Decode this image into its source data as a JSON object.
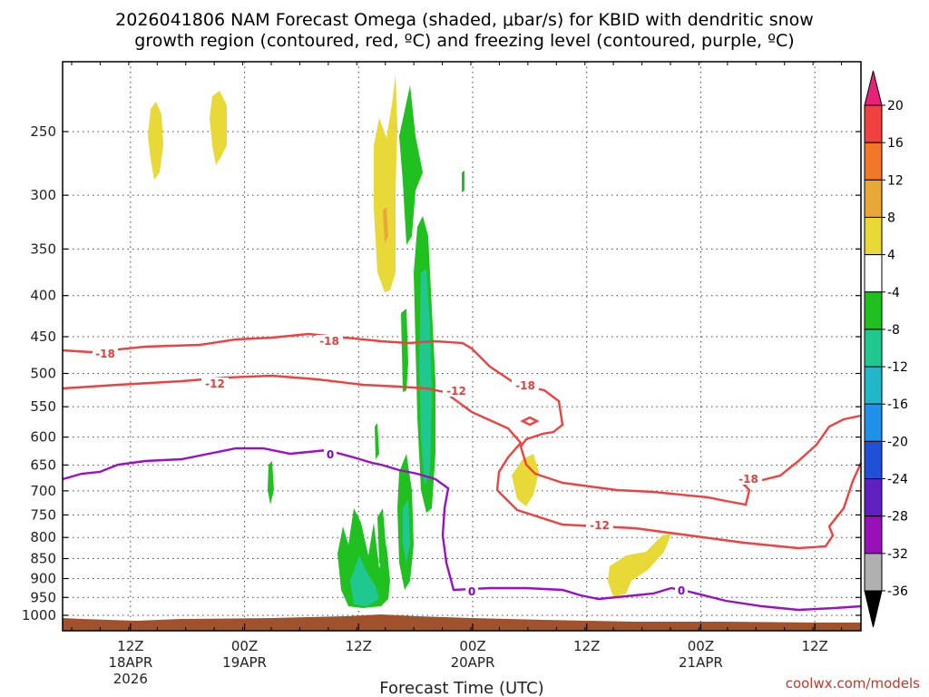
{
  "chart_data": {
    "type": "heatmap",
    "title_line1": "2026041806 NAM Forecast Omega (shaded, μbar/s) for KBID with dendritic snow",
    "title_line2": "growth region (contoured, red, ºC) and freezing level (contoured, purple, ºC)",
    "xlabel": "Forecast Time (UTC)",
    "credit": "coolwx.com/models",
    "y_ticks": [
      "250",
      "300",
      "350",
      "400",
      "450",
      "500",
      "550",
      "600",
      "650",
      "700",
      "750",
      "800",
      "850",
      "900",
      "950",
      "1000"
    ],
    "y_tick_values": [
      250,
      300,
      350,
      400,
      450,
      500,
      550,
      600,
      650,
      700,
      750,
      800,
      850,
      900,
      950,
      1000
    ],
    "x_ticks": [
      {
        "hour": 6,
        "l1": "12Z",
        "l2": "18APR",
        "l3": "2026"
      },
      {
        "hour": 18,
        "l1": "00Z",
        "l2": "19APR",
        "l3": ""
      },
      {
        "hour": 30,
        "l1": "12Z",
        "l2": "",
        "l3": ""
      },
      {
        "hour": 42,
        "l1": "00Z",
        "l2": "20APR",
        "l3": ""
      },
      {
        "hour": 54,
        "l1": "12Z",
        "l2": "",
        "l3": ""
      },
      {
        "hour": 66,
        "l1": "00Z",
        "l2": "21APR",
        "l3": ""
      },
      {
        "hour": 78,
        "l1": "12Z",
        "l2": "",
        "l3": ""
      }
    ],
    "x_range_hours": [
      0,
      84
    ],
    "y_range_hpa": [
      200,
      1025
    ],
    "grid": true,
    "colorbar": {
      "levels": [
        "20",
        "16",
        "12",
        "8",
        "4",
        "-4",
        "-8",
        "-12",
        "-16",
        "-20",
        "-24",
        "-28",
        "-32",
        "-36"
      ],
      "colors": [
        "#e8207a",
        "#f04040",
        "#f07828",
        "#e8a838",
        "#e8d838",
        "#ffffff",
        "#20c020",
        "#20c890",
        "#20b8c8",
        "#2090e8",
        "#2050d8",
        "#6020c0",
        "#9810b8",
        "#b0b0b0",
        "#000000"
      ]
    },
    "contours": {
      "red_labels": [
        "-18",
        "-12",
        "-18",
        "-12",
        "-18",
        "-12",
        "-18"
      ],
      "purple_labels": [
        "0",
        "0",
        "0"
      ]
    }
  }
}
